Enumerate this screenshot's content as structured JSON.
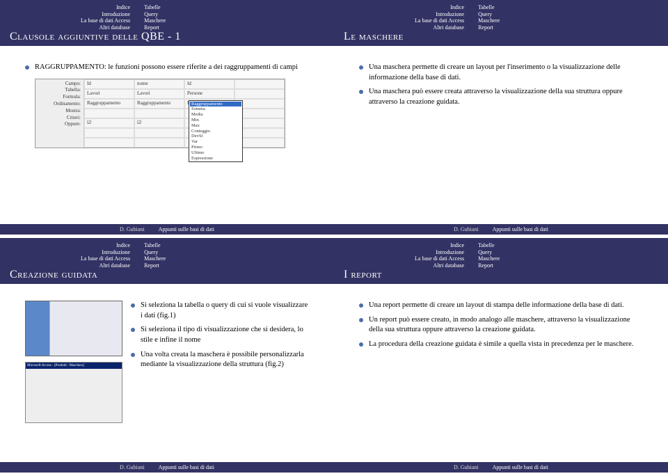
{
  "colors": {
    "header_bg": "#323264",
    "bullet": "#4a6da8",
    "footer_bg": "#323264"
  },
  "nav": {
    "col1": [
      "Indice",
      "Introduzione",
      "La base di dati Access",
      "Altri database"
    ],
    "col2": [
      "Tabelle",
      "Query",
      "Maschere",
      "Report"
    ]
  },
  "footer": {
    "author": "D. Gubiani",
    "doc": "Appunti sulle basi di dati"
  },
  "slides": [
    {
      "title": "Clausole aggiuntive delle QBE - 1",
      "intro": "RAGGRUPPAMENTO: le funzioni possono essere riferite a dei raggruppamenti di campi",
      "access_labels": [
        "Campo:",
        "Tabella:",
        "Formula:",
        "Ordinamento:",
        "Mostra:",
        "Criteri:",
        "Oppure:"
      ],
      "access_row1": [
        "Id",
        "nome",
        "Id",
        ""
      ],
      "access_row2": [
        "Lavori",
        "Lavori",
        "Persone",
        ""
      ],
      "access_row3": [
        "Raggruppamento",
        "Raggruppamento",
        "Raggruppamento",
        ""
      ],
      "dropdown": [
        "Raggruppamento",
        "Somma",
        "Media",
        "Min",
        "Max",
        "Conteggio",
        "DevSt",
        "Var",
        "Primo",
        "Ultimo",
        "Espressione"
      ]
    },
    {
      "title": "Le maschere",
      "bullets": [
        "Una maschera permette di creare un layout per l'inserimento o la visualizzazione delle informazione della base di dati.",
        "Una maschera può essere creata attraverso la visualizzazione della sua struttura oppure attraverso la creazione guidata."
      ]
    },
    {
      "title": "Creazione guidata",
      "access_title": "Microsoft Access - [Prodotti : Maschera]",
      "bullets": [
        "Si seleziona la tabella o query di cui si vuole visualizzare i dati (fig.1)",
        "Si seleziona il tipo di visualizzazione che si desidera, lo stile e infine il nome",
        "Una volta creata la maschera è possibile personalizzarla mediante la visualizzazione della struttura (fig.2)"
      ]
    },
    {
      "title": "I report",
      "bullets": [
        "Una report permette di creare un layout di stampa delle informazione della base di dati.",
        "Un report può essere creato, in modo analogo alle maschere, attraverso la visualizzazione della sua struttura oppure attraverso la creazione guidata.",
        "La procedura della creazione guidata è simile a quella vista in precedenza per le maschere."
      ]
    }
  ]
}
